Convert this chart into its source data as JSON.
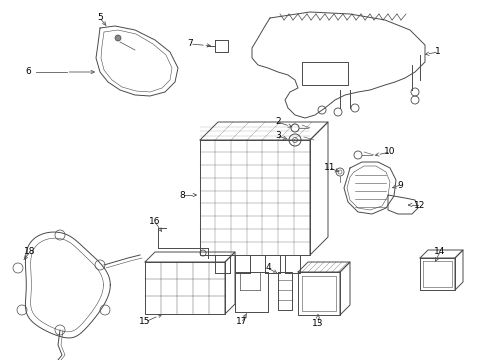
{
  "background_color": "#ffffff",
  "line_color": "#4a4a4a",
  "label_color": "#000000",
  "figsize": [
    4.9,
    3.6
  ],
  "dpi": 100
}
